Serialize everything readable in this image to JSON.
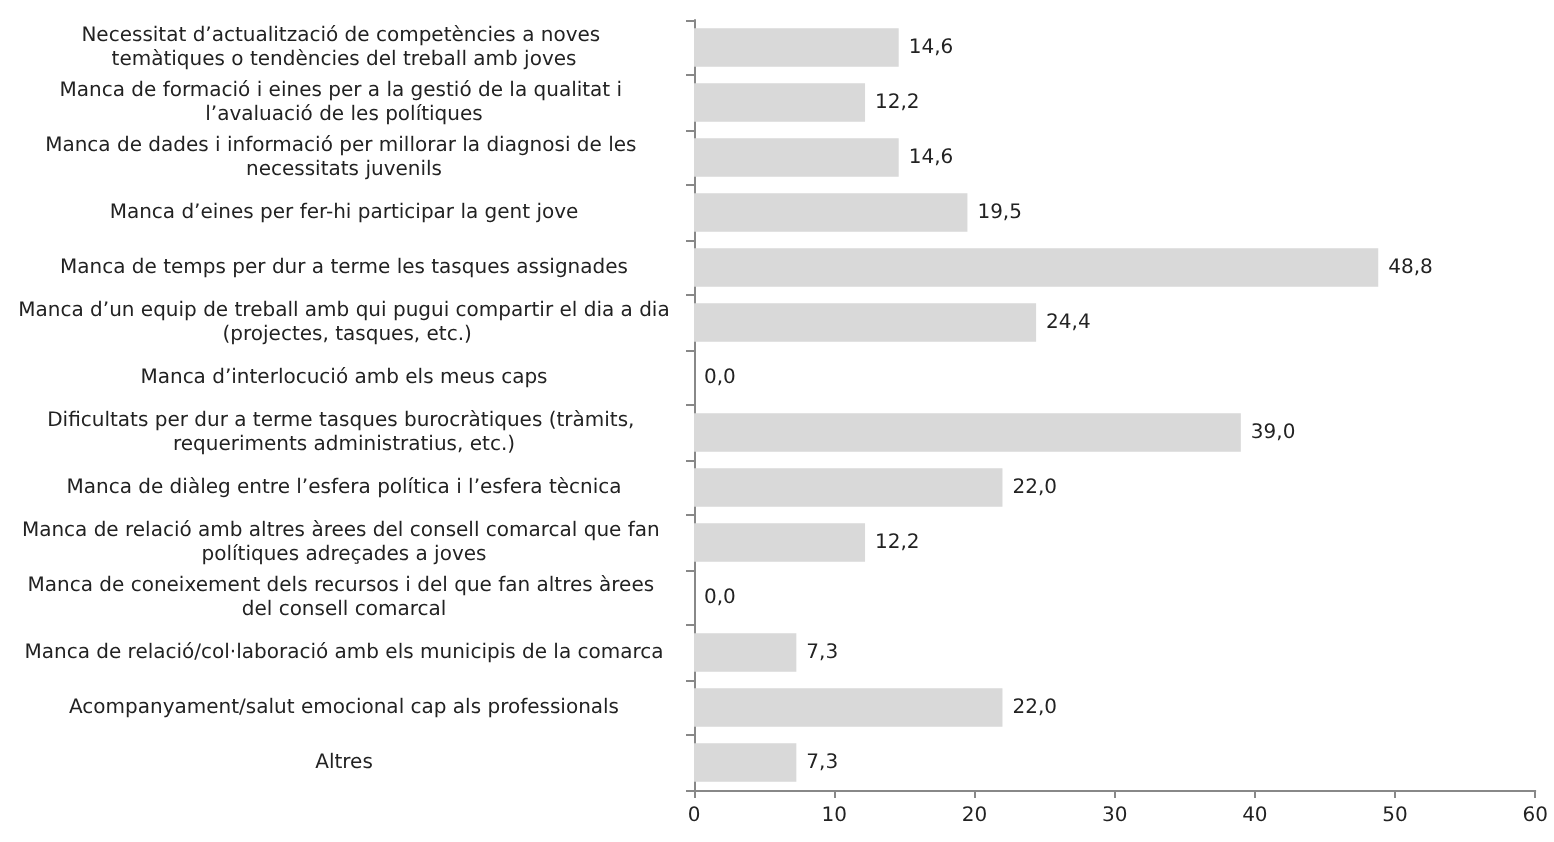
{
  "chart_data": {
    "type": "bar",
    "orientation": "horizontal",
    "categories": [
      "Necessitat d’actualització de competències a noves temàtiques o tendències del treball amb joves",
      "Manca de formació i eines per a la gestió de la qualitat i l’avaluació de les polítiques",
      "Manca de dades i informació per millorar la diagnosi de les necessitats juvenils",
      "Manca d’eines per fer-hi participar la gent jove",
      "Manca de temps per dur a terme les tasques assignades",
      "Manca d’un equip de treball amb qui pugui compartir el dia a dia (projectes, tasques, etc.)",
      "Manca d’interlocució amb els meus caps",
      "Dificultats per dur a terme tasques burocràtiques (tràmits, requeriments administratius, etc.)",
      "Manca de diàleg entre l’esfera política i l’esfera tècnica",
      "Manca de relació amb altres àrees del consell comarcal que fan polítiques adreçades a joves",
      "Manca de coneixement dels recursos i del que fan altres àrees del consell comarcal",
      "Manca de relació/col·laboració amb els municipis de la comarca",
      "Acompanyament/salut emocional cap als professionals",
      "Altres"
    ],
    "values": [
      14.6,
      12.2,
      14.6,
      19.5,
      48.8,
      24.4,
      0,
      39.0,
      22.0,
      12.2,
      0,
      7.3,
      22.0,
      7.3
    ],
    "value_labels": [
      "14,6",
      "12,2",
      "14,6",
      "19,5",
      "48,8",
      "24,4",
      "0,0",
      "39,0",
      "22,0",
      "12,2",
      "0,0",
      "7,3",
      "22,0",
      "7,3"
    ],
    "color": "#d9d9d9",
    "xlim": [
      0,
      60
    ],
    "xticks": [
      0,
      10,
      20,
      30,
      40,
      50,
      60
    ]
  }
}
